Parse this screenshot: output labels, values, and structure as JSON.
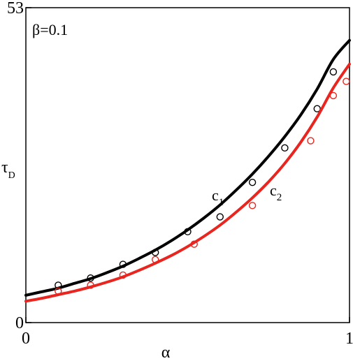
{
  "chart_data": {
    "type": "line",
    "title": "",
    "annotation": "β=0.1",
    "xlabel": "α",
    "ylabel": "τ",
    "ylabel_sub": "D",
    "xlim": [
      0,
      1
    ],
    "ylim": [
      0,
      53
    ],
    "x_ticks": [
      {
        "value": 0,
        "label": "0"
      },
      {
        "value": 1,
        "label": "1"
      }
    ],
    "y_ticks": [
      {
        "value": 0,
        "label": "0"
      },
      {
        "value": 53,
        "label": "53"
      }
    ],
    "grid": false,
    "series": [
      {
        "name": "c",
        "name_sub": "1",
        "color": "#000000",
        "x": [
          0.0,
          0.05,
          0.1,
          0.15,
          0.2,
          0.25,
          0.3,
          0.35,
          0.4,
          0.45,
          0.5,
          0.55,
          0.6,
          0.65,
          0.7,
          0.75,
          0.8,
          0.85,
          0.9,
          0.95,
          1.0
        ],
        "y": [
          4.6,
          5.2,
          5.8,
          6.6,
          7.4,
          8.4,
          9.5,
          10.8,
          12.2,
          13.8,
          15.6,
          17.6,
          19.8,
          22.3,
          25.0,
          28.0,
          31.3,
          35.0,
          39.3,
          44.3,
          47.5
        ],
        "markers": {
          "x": [
            0.1,
            0.2,
            0.3,
            0.4,
            0.5,
            0.6,
            0.7,
            0.8,
            0.9,
            0.95
          ],
          "y": [
            6.3,
            7.5,
            9.8,
            11.8,
            15.3,
            17.8,
            23.6,
            29.4,
            36.0,
            42.2
          ]
        }
      },
      {
        "name": "c",
        "name_sub": "2",
        "color": "#e8251f",
        "x": [
          0.0,
          0.05,
          0.1,
          0.15,
          0.2,
          0.25,
          0.3,
          0.35,
          0.4,
          0.45,
          0.5,
          0.55,
          0.6,
          0.65,
          0.7,
          0.75,
          0.8,
          0.85,
          0.9,
          0.95,
          1.0
        ],
        "y": [
          3.6,
          4.1,
          4.7,
          5.3,
          6.0,
          6.8,
          7.7,
          8.8,
          10.0,
          11.3,
          12.8,
          14.5,
          16.4,
          18.6,
          21.0,
          23.7,
          26.8,
          30.4,
          34.6,
          39.5,
          43.5
        ],
        "markers": {
          "x": [
            0.1,
            0.2,
            0.3,
            0.4,
            0.52,
            0.7,
            0.88,
            0.95,
            0.99
          ],
          "y": [
            5.3,
            6.3,
            8.0,
            10.6,
            13.2,
            19.7,
            30.6,
            38.2,
            40.6
          ]
        }
      }
    ]
  }
}
